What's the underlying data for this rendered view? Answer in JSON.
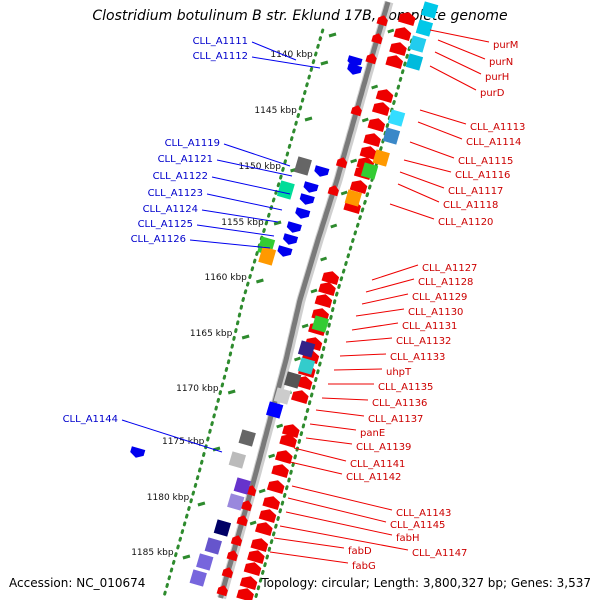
{
  "title": "Clostridium botulinum B str. Eklund 17B, complete genome",
  "accession": "Accession: NC_010674",
  "summary": "Topology: circular; Length: 3,800,327 bp; Genes: 3,537",
  "colors": {
    "backbone": "#7a7a7a",
    "tick_dot": "#2e8b2e",
    "tick_dash": "#2e8b2e",
    "forward_gene": "#0000ee",
    "reverse_gene": "#ee0000",
    "forward_label": "#0000cc",
    "reverse_label": "#cc0000"
  },
  "scale_labels": [
    "1140 kbp",
    "1145 kbp",
    "1150 kbp",
    "1155 kbp",
    "1160 kbp",
    "1165 kbp",
    "1170 kbp",
    "1175 kbp",
    "1180 kbp",
    "1185 kbp"
  ],
  "forward_genes": [
    "CLL_A1111",
    "CLL_A1112",
    "CLL_A1119",
    "CLL_A1121",
    "CLL_A1122",
    "CLL_A1123",
    "CLL_A1124",
    "CLL_A1125",
    "CLL_A1126",
    "CLL_A1144"
  ],
  "reverse_genes": [
    "purM",
    "purN",
    "purH",
    "purD",
    "CLL_A1113",
    "CLL_A1114",
    "CLL_A1115",
    "CLL_A1116",
    "CLL_A1117",
    "CLL_A1118",
    "CLL_A1120",
    "CLL_A1127",
    "CLL_A1128",
    "CLL_A1129",
    "CLL_A1130",
    "CLL_A1131",
    "CLL_A1132",
    "CLL_A1133",
    "uhpT",
    "CLL_A1135",
    "CLL_A1136",
    "CLL_A1137",
    "panE",
    "CLL_A1139",
    "CLL_A1141",
    "CLL_A1142",
    "CLL_A1143",
    "CLL_A1145",
    "fabH",
    "CLL_A1147",
    "fabD",
    "fabG"
  ]
}
